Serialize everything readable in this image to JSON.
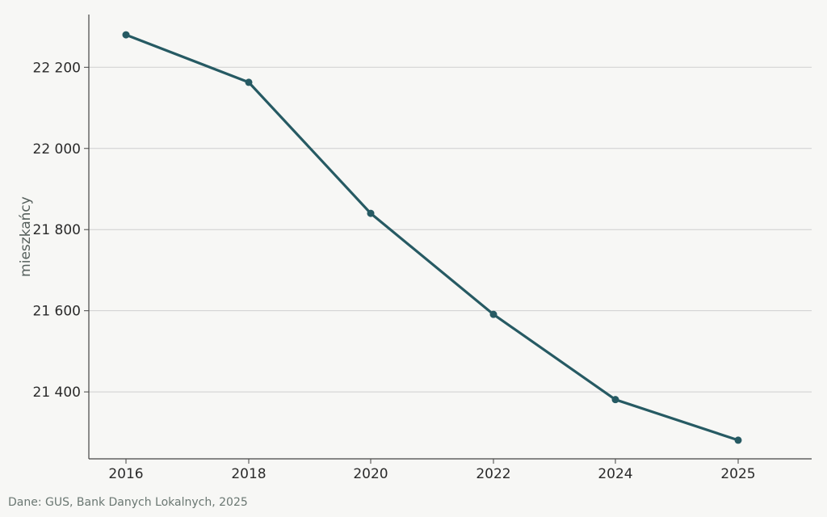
{
  "chart_data": {
    "type": "line",
    "title": "",
    "xlabel": "",
    "ylabel": "mieszkańcy",
    "categories": [
      "2016",
      "2018",
      "2020",
      "2022",
      "2024",
      "2025"
    ],
    "series": [
      {
        "values": [
          22280,
          22163,
          21840,
          21591,
          21381,
          21281
        ]
      }
    ],
    "ylim": [
      21235,
      22330
    ],
    "yticks": [
      21400,
      21600,
      21800,
      22000,
      22200
    ],
    "ytick_labels": [
      "21 400",
      "21 600",
      "21 800",
      "22 000",
      "22 200"
    ],
    "grid": "horizontal",
    "colors": {
      "line": "#265a63",
      "grid": "#cfcfcf",
      "axis": "#444444"
    }
  },
  "source_note": "Dane: GUS, Bank Danych Lokalnych, 2025"
}
